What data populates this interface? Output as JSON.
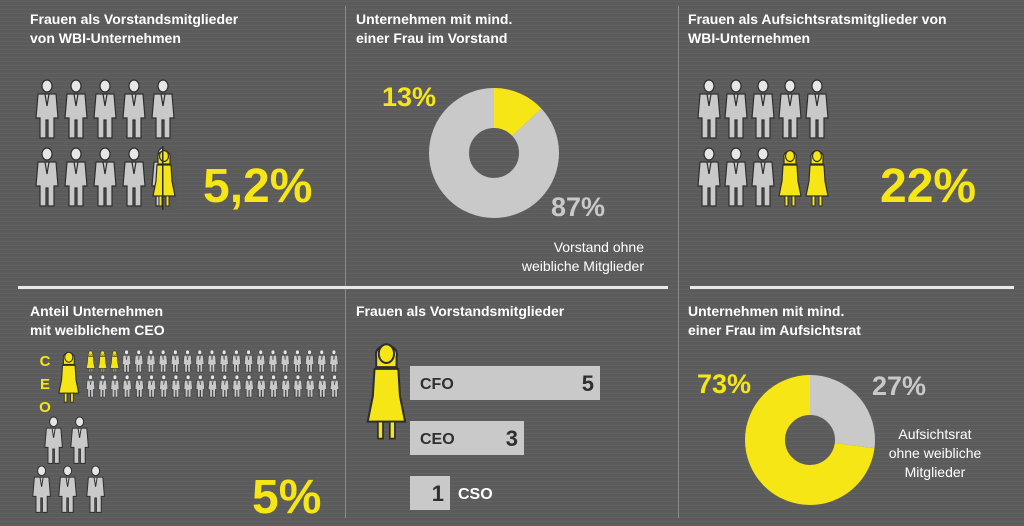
{
  "colors": {
    "background": "#5b5b5b",
    "accent": "#f6e616",
    "grey": "#c9c9c9",
    "white": "#ffffff"
  },
  "panels": {
    "p1": {
      "title_line1": "Frauen als Vorstandsmitglieder",
      "title_line2": "von WBI-Unternehmen",
      "value": "5,2%"
    },
    "p2": {
      "title_line1": "Unternehmen mit mind.",
      "title_line2": "einer Frau im Vorstand",
      "label_women": "13%",
      "label_rest": "87%",
      "note_line1": "Vorstand ohne",
      "note_line2": "weibliche Mitglieder"
    },
    "p3": {
      "title_line1": "Frauen als Aufsichtsratsmitglieder von",
      "title_line2": "WBI-Unternehmen",
      "value": "22%"
    },
    "p4": {
      "title_line1": "Anteil Unternehmen",
      "title_line2": "mit weiblichem CEO",
      "value": "5%",
      "letters": [
        "C",
        "E",
        "O"
      ]
    },
    "p5": {
      "title": "Frauen als Vorstandsmitglieder"
    },
    "p6": {
      "title_line1": "Unternehmen mit mind.",
      "title_line2": "einer Frau im Aufsichtsrat",
      "label_women": "73%",
      "label_rest": "27%",
      "note_line1": "Aufsichtsrat",
      "note_line2": "ohne weibliche",
      "note_line3": "Mitglieder"
    }
  },
  "chart_data": [
    {
      "type": "pie",
      "labels": [
        "Vorstand mit Frau",
        "Vorstand ohne weibliche Mitglieder"
      ],
      "values": [
        13,
        87
      ]
    },
    {
      "type": "bar",
      "categories": [
        "CFO",
        "CEO",
        "CSO"
      ],
      "values": [
        5,
        3,
        1
      ]
    },
    {
      "type": "pie",
      "labels": [
        "Aufsichtsrat mit Frau",
        "Aufsichtsrat ohne weibliche Mitglieder"
      ],
      "values": [
        73,
        27
      ]
    }
  ]
}
